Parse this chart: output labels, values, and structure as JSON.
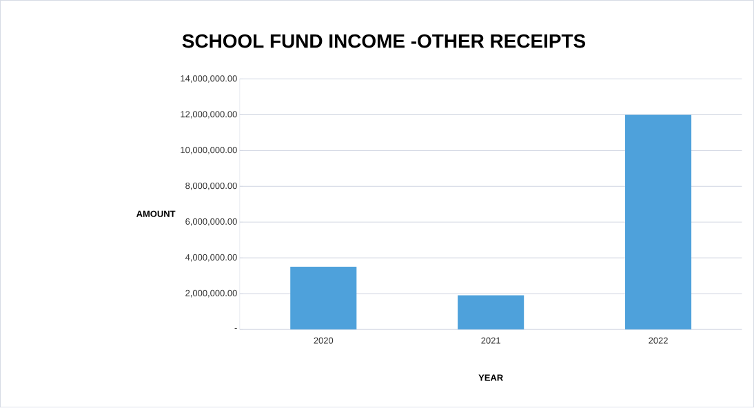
{
  "chart_data": {
    "type": "bar",
    "title": "SCHOOL FUND INCOME -OTHER RECEIPTS",
    "xlabel": "YEAR",
    "ylabel": "AMOUNT",
    "categories": [
      "2020",
      "2021",
      "2022"
    ],
    "values": [
      3500000,
      1900000,
      12000000
    ],
    "color": "#4ea1db",
    "ylim": [
      0,
      14000000
    ],
    "yticks": [
      {
        "value": 0,
        "label": "-"
      },
      {
        "value": 2000000,
        "label": "2,000,000.00"
      },
      {
        "value": 4000000,
        "label": "4,000,000.00"
      },
      {
        "value": 6000000,
        "label": "6,000,000.00"
      },
      {
        "value": 8000000,
        "label": "8,000,000.00"
      },
      {
        "value": 10000000,
        "label": "10,000,000.00"
      },
      {
        "value": 12000000,
        "label": "12,000,000.00"
      },
      {
        "value": 14000000,
        "label": "14,000,000.00"
      }
    ],
    "grid": "y"
  }
}
